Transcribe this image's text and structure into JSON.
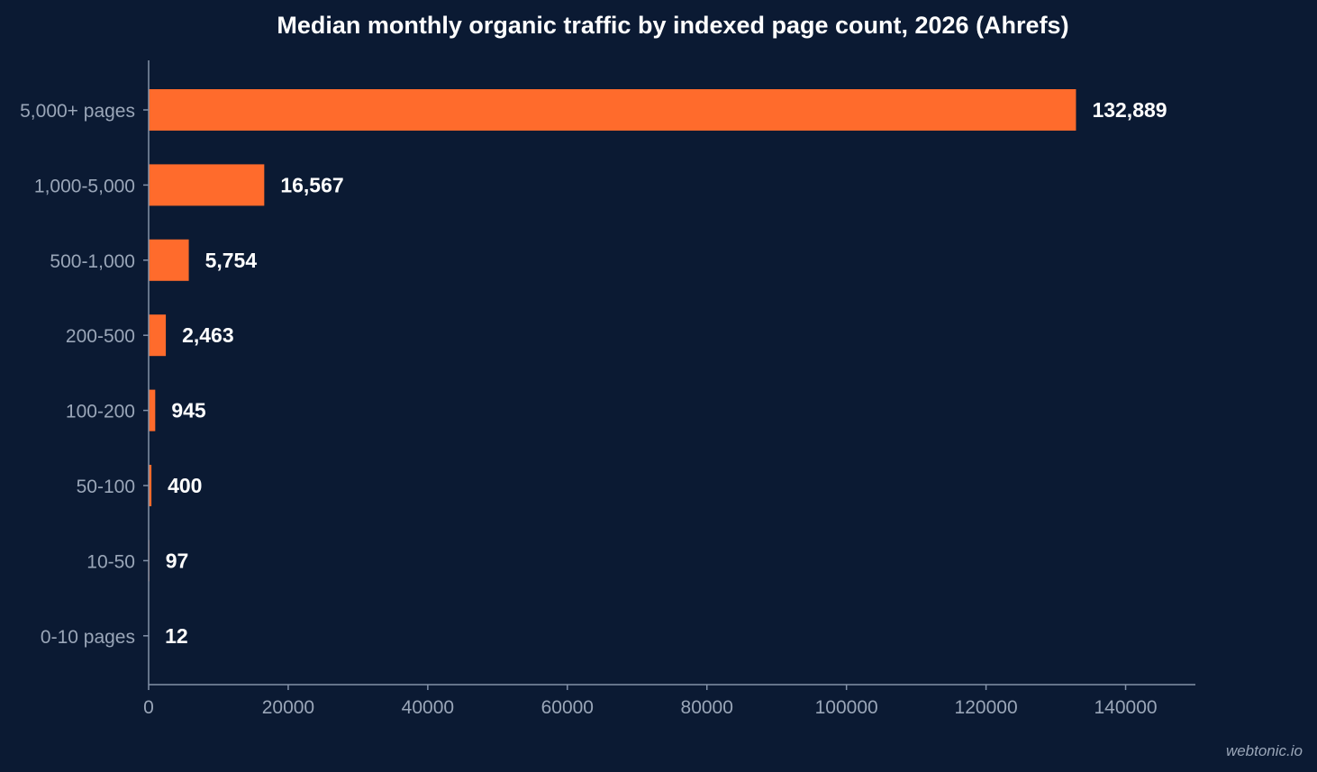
{
  "chart_data": {
    "type": "bar",
    "orientation": "horizontal",
    "title": "Median monthly organic traffic by indexed page count, 2026 (Ahrefs)",
    "categories": [
      "5,000+ pages",
      "1,000-5,000",
      "500-1,000",
      "200-500",
      "100-200",
      "50-100",
      "10-50",
      "0-10 pages"
    ],
    "values": [
      132889,
      16567,
      5754,
      2463,
      945,
      400,
      97,
      12
    ],
    "value_labels": [
      "132,889",
      "16,567",
      "5,754",
      "2,463",
      "945",
      "400",
      "97",
      "12"
    ],
    "xticks": [
      0,
      20000,
      40000,
      60000,
      80000,
      100000,
      120000,
      140000
    ],
    "xlim": [
      0,
      150000
    ],
    "bar_color": "#ff6b2c",
    "grid": false
  },
  "watermark": "webtonic.io"
}
